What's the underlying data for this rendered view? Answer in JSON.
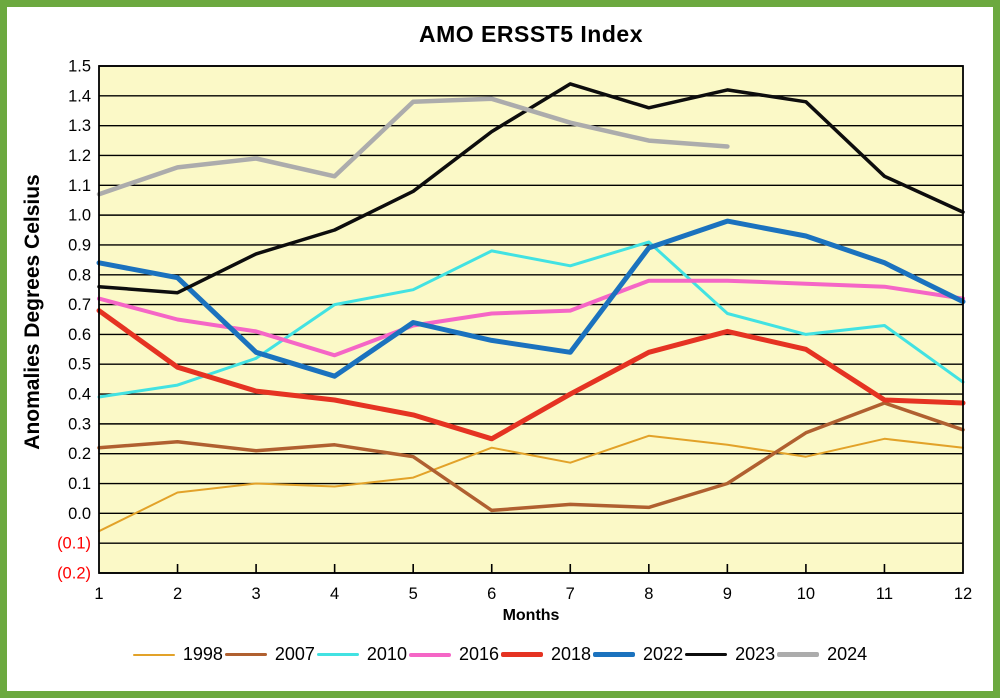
{
  "title": "AMO ERSST5 Index",
  "axes": {
    "y_title": "Anomalies Degrees Celsius",
    "x_title": "Months",
    "y_tick_labels": [
      "1.5",
      "1.4",
      "1.3",
      "1.2",
      "1.1",
      "1.0",
      "0.9",
      "0.8",
      "0.7",
      "0.6",
      "0.5",
      "0.4",
      "0.3",
      "0.2",
      "0.1",
      "0.0",
      "(0.1)",
      "(0.2)"
    ],
    "y_tick_values": [
      1.5,
      1.4,
      1.3,
      1.2,
      1.1,
      1.0,
      0.9,
      0.8,
      0.7,
      0.6,
      0.5,
      0.4,
      0.3,
      0.2,
      0.1,
      0.0,
      -0.1,
      -0.2
    ],
    "x_tick_labels": [
      "1",
      "2",
      "3",
      "4",
      "5",
      "6",
      "7",
      "8",
      "9",
      "10",
      "11",
      "12"
    ]
  },
  "colors": {
    "plot_background": "#FBF9C7",
    "frame_border": "#6CA93F",
    "gridline": "#000000",
    "axis_line": "#000000",
    "negative_tick_label": "#FF0000",
    "tick_label": "#000000"
  },
  "chart_data": {
    "type": "line",
    "title": "AMO ERSST5 Index",
    "xlabel": "Months",
    "ylabel": "Anomalies Degrees Celsius",
    "x": [
      1,
      2,
      3,
      4,
      5,
      6,
      7,
      8,
      9,
      10,
      11,
      12
    ],
    "ylim": [
      -0.2,
      1.5
    ],
    "y_step": 0.1,
    "grid": "horizontal-only",
    "legend_position": "bottom",
    "series": [
      {
        "name": "1998",
        "color": "#E2A229",
        "stroke_width": 2,
        "values": [
          -0.06,
          0.07,
          0.1,
          0.09,
          0.12,
          0.22,
          0.17,
          0.26,
          0.23,
          0.19,
          0.25,
          0.22
        ]
      },
      {
        "name": "2007",
        "color": "#B06030",
        "stroke_width": 3.5,
        "values": [
          0.22,
          0.24,
          0.21,
          0.23,
          0.19,
          0.01,
          0.03,
          0.02,
          0.1,
          0.27,
          0.37,
          0.28
        ]
      },
      {
        "name": "2010",
        "color": "#42E2E2",
        "stroke_width": 3,
        "values": [
          0.39,
          0.43,
          0.52,
          0.7,
          0.75,
          0.88,
          0.83,
          0.91,
          0.67,
          0.6,
          0.63,
          0.44
        ]
      },
      {
        "name": "2016",
        "color": "#F566C6",
        "stroke_width": 4,
        "values": [
          0.72,
          0.65,
          0.61,
          0.53,
          0.63,
          0.67,
          0.68,
          0.78,
          0.78,
          0.77,
          0.76,
          0.72
        ]
      },
      {
        "name": "2018",
        "color": "#E53322",
        "stroke_width": 5,
        "values": [
          0.68,
          0.49,
          0.41,
          0.38,
          0.33,
          0.25,
          0.4,
          0.54,
          0.61,
          0.55,
          0.38,
          0.37
        ]
      },
      {
        "name": "2022",
        "color": "#1B72BE",
        "stroke_width": 5,
        "values": [
          0.84,
          0.79,
          0.54,
          0.46,
          0.64,
          0.58,
          0.54,
          0.89,
          0.98,
          0.93,
          0.84,
          0.71
        ]
      },
      {
        "name": "2023",
        "color": "#0D0D0D",
        "stroke_width": 3.5,
        "values": [
          0.76,
          0.74,
          0.87,
          0.95,
          1.08,
          1.28,
          1.44,
          1.36,
          1.42,
          1.38,
          1.13,
          1.01
        ]
      },
      {
        "name": "2024",
        "color": "#ACACAC",
        "stroke_width": 4.5,
        "values": [
          1.07,
          1.16,
          1.19,
          1.13,
          1.38,
          1.39,
          1.31,
          1.25,
          1.23
        ]
      }
    ]
  }
}
